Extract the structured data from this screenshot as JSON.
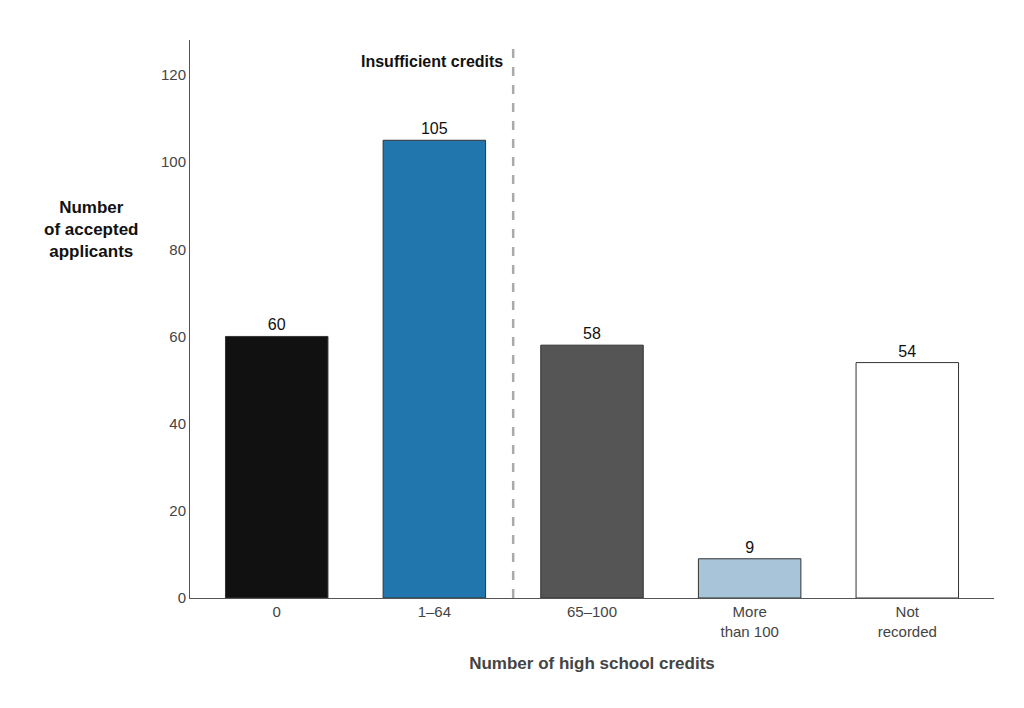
{
  "chart_data": {
    "type": "bar",
    "categories": [
      "0",
      "1–64",
      "65–100",
      "More\nthan 100",
      "Not\nrecorded"
    ],
    "values": [
      60,
      105,
      58,
      9,
      54
    ],
    "colors": [
      "#111111",
      "#2176ae",
      "#555555",
      "#a8c4d8",
      "#ffffff"
    ],
    "xlabel": "Number of high school credits",
    "ylabel": "Number\nof accepted\napplicants",
    "annotations": [
      "Insufficient credits"
    ],
    "ylim": [
      0,
      128
    ],
    "yticks": [
      0,
      20,
      40,
      60,
      80,
      100,
      120
    ],
    "grid": false,
    "data_labels": true
  }
}
